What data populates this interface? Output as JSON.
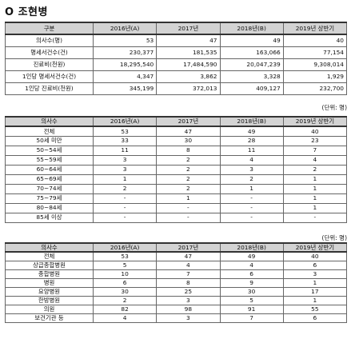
{
  "title": "O 조현병",
  "table1": {
    "headers": [
      "구분",
      "2016년(A)",
      "2017년",
      "2018년(B)",
      "2019년 상반기"
    ],
    "rows": [
      {
        "label": "의사수(명)",
        "values": [
          "53",
          "47",
          "49",
          "40"
        ]
      },
      {
        "label": "명세서건수(건)",
        "values": [
          "230,377",
          "181,535",
          "163,066",
          "77,154"
        ]
      },
      {
        "label": "진료비(천원)",
        "values": [
          "18,295,540",
          "17,484,590",
          "20,047,239",
          "9,308,014"
        ]
      },
      {
        "label": "1인당 명세서건수(건)",
        "values": [
          "4,347",
          "3,862",
          "3,328",
          "1,929"
        ]
      },
      {
        "label": "1인당 진료비(천원)",
        "values": [
          "345,199",
          "372,013",
          "409,127",
          "232,700"
        ]
      }
    ]
  },
  "unit1": "(단위: 명)",
  "table2": {
    "headers": [
      "의사수",
      "2016년(A)",
      "2017년",
      "2018년(B)",
      "2019년 상반기"
    ],
    "rows": [
      {
        "label": "전체",
        "values": [
          "53",
          "47",
          "49",
          "40"
        ]
      },
      {
        "label": "50세 미만",
        "values": [
          "33",
          "30",
          "28",
          "23"
        ]
      },
      {
        "label": "50~54세",
        "values": [
          "11",
          "8",
          "11",
          "7"
        ]
      },
      {
        "label": "55~59세",
        "values": [
          "3",
          "2",
          "4",
          "4"
        ]
      },
      {
        "label": "60~64세",
        "values": [
          "3",
          "2",
          "3",
          "2"
        ]
      },
      {
        "label": "65~69세",
        "values": [
          "1",
          "2",
          "2",
          "1"
        ]
      },
      {
        "label": "70~74세",
        "values": [
          "2",
          "2",
          "1",
          "1"
        ]
      },
      {
        "label": "75~79세",
        "values": [
          "-",
          "1",
          "-",
          "1"
        ]
      },
      {
        "label": "80~84세",
        "values": [
          "-",
          "-",
          "-",
          "1"
        ]
      },
      {
        "label": "85세 이상",
        "values": [
          "-",
          "-",
          "-",
          "-"
        ]
      }
    ]
  },
  "unit2": "(단위: 명)",
  "table3": {
    "headers": [
      "의사수",
      "2016년(A)",
      "2017년",
      "2018년(B)",
      "2019년 상반기"
    ],
    "rows": [
      {
        "label": "전체",
        "values": [
          "53",
          "47",
          "49",
          "40"
        ]
      },
      {
        "label": "상급종합병원",
        "values": [
          "5",
          "4",
          "4",
          "6"
        ]
      },
      {
        "label": "종합병원",
        "values": [
          "10",
          "7",
          "6",
          "3"
        ]
      },
      {
        "label": "병원",
        "values": [
          "6",
          "8",
          "9",
          "1"
        ]
      },
      {
        "label": "요양병원",
        "values": [
          "30",
          "25",
          "30",
          "17"
        ]
      },
      {
        "label": "한방병원",
        "values": [
          "2",
          "3",
          "5",
          "1"
        ]
      },
      {
        "label": "의원",
        "values": [
          "82",
          "98",
          "91",
          "55"
        ]
      },
      {
        "label": "보건기관 등",
        "values": [
          "4",
          "3",
          "7",
          "6"
        ]
      }
    ]
  }
}
